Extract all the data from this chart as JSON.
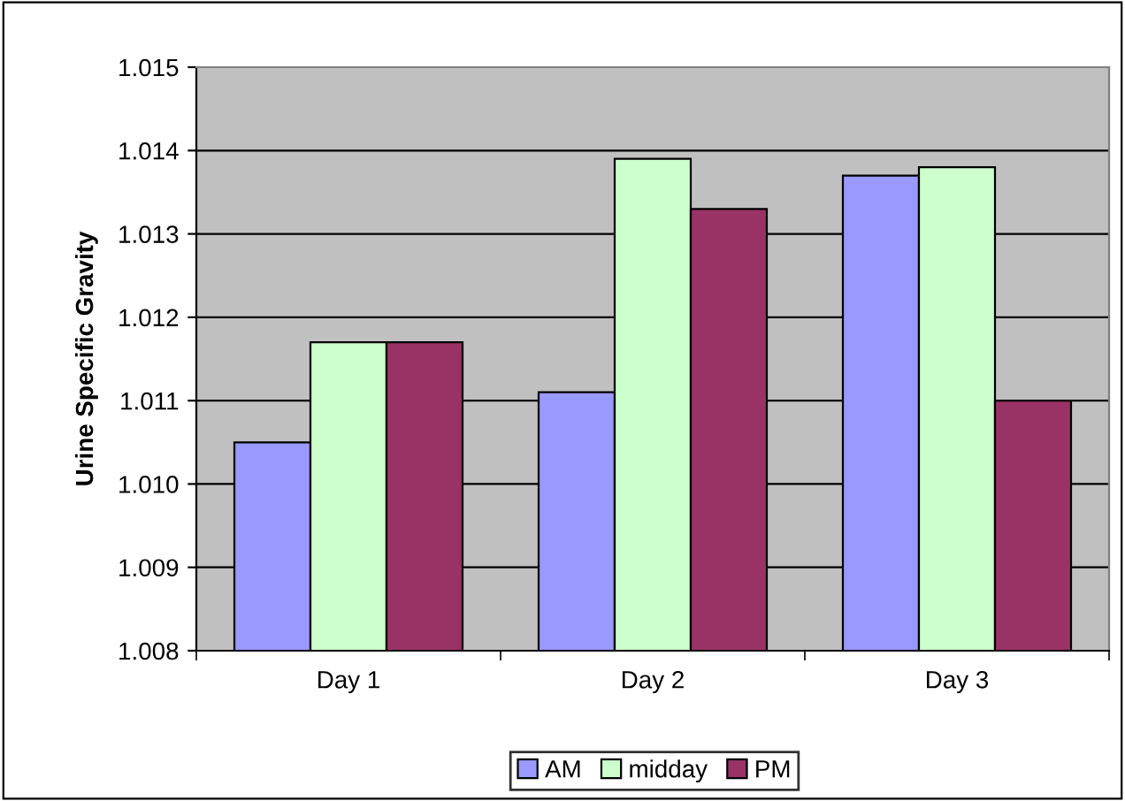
{
  "chart_data": {
    "type": "bar",
    "ylabel": "Urine Specific Gravity",
    "categories": [
      "Day 1",
      "Day 2",
      "Day 3"
    ],
    "series": [
      {
        "name": "AM",
        "color": "#9999ff",
        "values": [
          1.0105,
          1.0111,
          1.0137
        ]
      },
      {
        "name": "midday",
        "color": "#ccffcc",
        "values": [
          1.0117,
          1.0139,
          1.0138
        ]
      },
      {
        "name": "PM",
        "color": "#993366",
        "values": [
          1.0117,
          1.0133,
          1.011
        ]
      }
    ],
    "ylim": [
      1.008,
      1.015
    ],
    "yticks": [
      1.008,
      1.009,
      {
        "value": 1.01,
        "label": "1.010"
      },
      1.011,
      1.012,
      1.013,
      1.014,
      1.015
    ],
    "grid": "y",
    "legend": "bottom"
  }
}
